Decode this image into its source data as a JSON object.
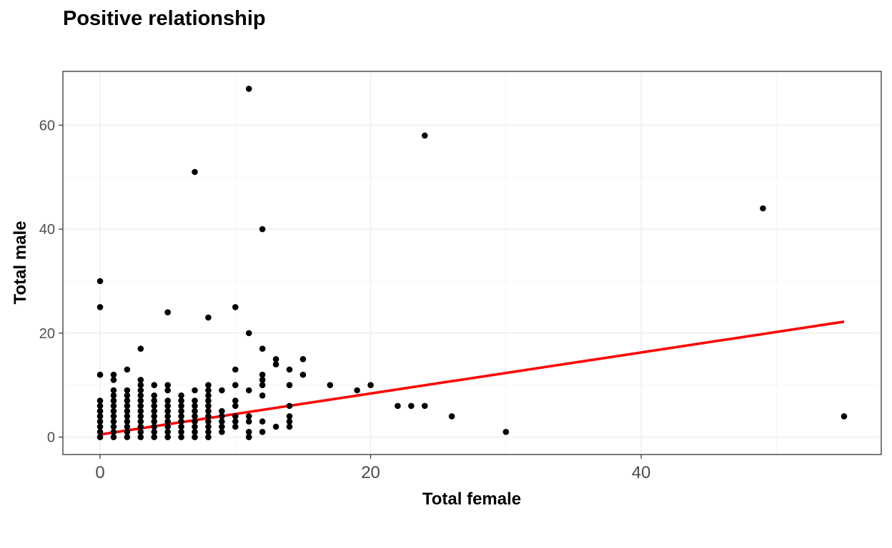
{
  "chart_data": {
    "type": "scatter",
    "title": "Positive relationship",
    "xlabel": "Total female",
    "ylabel": "Total male",
    "xlim": [
      -2.75,
      57.75
    ],
    "ylim": [
      -3.35,
      70.35
    ],
    "x_ticks": [
      0,
      20,
      40
    ],
    "x_tick_labels": [
      "0",
      "20",
      "40"
    ],
    "y_ticks": [
      0,
      20,
      40,
      60
    ],
    "y_tick_labels": [
      "0",
      "20",
      "40",
      "60"
    ],
    "grid": true,
    "legend": "none",
    "point_color": "#000000",
    "trend_color": "#ff0000",
    "points": [
      [
        0,
        0
      ],
      [
        0,
        1
      ],
      [
        0,
        2
      ],
      [
        0,
        3
      ],
      [
        0,
        4
      ],
      [
        0,
        5
      ],
      [
        0,
        6
      ],
      [
        0,
        7
      ],
      [
        0,
        12
      ],
      [
        0,
        25
      ],
      [
        0,
        30
      ],
      [
        1,
        0
      ],
      [
        1,
        1
      ],
      [
        1,
        2
      ],
      [
        1,
        3
      ],
      [
        1,
        4
      ],
      [
        1,
        5
      ],
      [
        1,
        6
      ],
      [
        1,
        7
      ],
      [
        1,
        8
      ],
      [
        1,
        9
      ],
      [
        1,
        11
      ],
      [
        1,
        12
      ],
      [
        2,
        0
      ],
      [
        2,
        1
      ],
      [
        2,
        2
      ],
      [
        2,
        3
      ],
      [
        2,
        4
      ],
      [
        2,
        5
      ],
      [
        2,
        6
      ],
      [
        2,
        7
      ],
      [
        2,
        8
      ],
      [
        2,
        9
      ],
      [
        2,
        13
      ],
      [
        3,
        0
      ],
      [
        3,
        1
      ],
      [
        3,
        2
      ],
      [
        3,
        3
      ],
      [
        3,
        4
      ],
      [
        3,
        5
      ],
      [
        3,
        6
      ],
      [
        3,
        7
      ],
      [
        3,
        8
      ],
      [
        3,
        9
      ],
      [
        3,
        10
      ],
      [
        3,
        11
      ],
      [
        3,
        17
      ],
      [
        4,
        0
      ],
      [
        4,
        1
      ],
      [
        4,
        2
      ],
      [
        4,
        3
      ],
      [
        4,
        4
      ],
      [
        4,
        5
      ],
      [
        4,
        6
      ],
      [
        4,
        7
      ],
      [
        4,
        8
      ],
      [
        4,
        10
      ],
      [
        5,
        0
      ],
      [
        5,
        1
      ],
      [
        5,
        2
      ],
      [
        5,
        3
      ],
      [
        5,
        4
      ],
      [
        5,
        5
      ],
      [
        5,
        6
      ],
      [
        5,
        7
      ],
      [
        5,
        9
      ],
      [
        5,
        10
      ],
      [
        5,
        24
      ],
      [
        6,
        0
      ],
      [
        6,
        1
      ],
      [
        6,
        2
      ],
      [
        6,
        3
      ],
      [
        6,
        4
      ],
      [
        6,
        5
      ],
      [
        6,
        6
      ],
      [
        6,
        7
      ],
      [
        6,
        8
      ],
      [
        7,
        0
      ],
      [
        7,
        1
      ],
      [
        7,
        2
      ],
      [
        7,
        3
      ],
      [
        7,
        4
      ],
      [
        7,
        5
      ],
      [
        7,
        6
      ],
      [
        7,
        7
      ],
      [
        7,
        9
      ],
      [
        7,
        51
      ],
      [
        8,
        0
      ],
      [
        8,
        1
      ],
      [
        8,
        2
      ],
      [
        8,
        3
      ],
      [
        8,
        4
      ],
      [
        8,
        5
      ],
      [
        8,
        6
      ],
      [
        8,
        7
      ],
      [
        8,
        8
      ],
      [
        8,
        9
      ],
      [
        8,
        10
      ],
      [
        8,
        23
      ],
      [
        9,
        1
      ],
      [
        9,
        2
      ],
      [
        9,
        3
      ],
      [
        9,
        4
      ],
      [
        9,
        5
      ],
      [
        9,
        9
      ],
      [
        10,
        2
      ],
      [
        10,
        3
      ],
      [
        10,
        4
      ],
      [
        10,
        6
      ],
      [
        10,
        7
      ],
      [
        10,
        10
      ],
      [
        10,
        13
      ],
      [
        10,
        25
      ],
      [
        11,
        0
      ],
      [
        11,
        1
      ],
      [
        11,
        3
      ],
      [
        11,
        4
      ],
      [
        11,
        9
      ],
      [
        11,
        20
      ],
      [
        11,
        67
      ],
      [
        12,
        1
      ],
      [
        12,
        3
      ],
      [
        12,
        8
      ],
      [
        12,
        10
      ],
      [
        12,
        11
      ],
      [
        12,
        12
      ],
      [
        12,
        17
      ],
      [
        12,
        40
      ],
      [
        13,
        2
      ],
      [
        13,
        14
      ],
      [
        13,
        15
      ],
      [
        14,
        2
      ],
      [
        14,
        3
      ],
      [
        14,
        4
      ],
      [
        14,
        6
      ],
      [
        14,
        10
      ],
      [
        14,
        13
      ],
      [
        15,
        12
      ],
      [
        15,
        15
      ],
      [
        17,
        10
      ],
      [
        19,
        9
      ],
      [
        20,
        10
      ],
      [
        22,
        6
      ],
      [
        23,
        6
      ],
      [
        24,
        6
      ],
      [
        24,
        58
      ],
      [
        26,
        4
      ],
      [
        30,
        1
      ],
      [
        49,
        44
      ],
      [
        55,
        4
      ]
    ],
    "trend_line": {
      "x": [
        0,
        55
      ],
      "y": [
        0.5,
        22.2
      ]
    }
  }
}
